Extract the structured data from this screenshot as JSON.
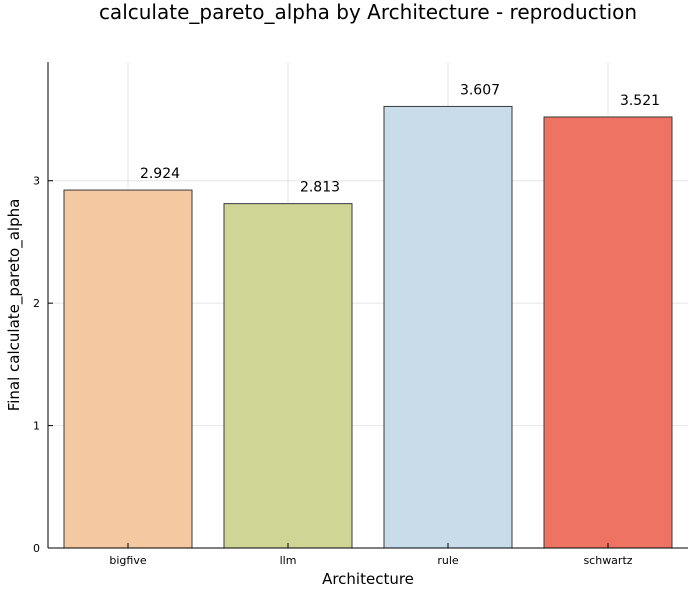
{
  "chart_data": {
    "type": "bar",
    "title": "calculate_pareto_alpha by Architecture - reproduction",
    "xlabel": "Architecture",
    "ylabel": "Final calculate_pareto_alpha",
    "categories": [
      "bigfive",
      "llm",
      "rule",
      "schwartz"
    ],
    "values": [
      2.924,
      2.813,
      3.607,
      3.521
    ],
    "value_labels": [
      "2.924",
      "2.813",
      "3.607",
      "3.521"
    ],
    "bar_colors": [
      "#f4c9a1",
      "#cfd595",
      "#c9dcea",
      "#ee7362"
    ],
    "yticks": [
      0,
      1,
      2,
      3
    ],
    "ylim": [
      0,
      3.97
    ],
    "grid": true,
    "legend": "none"
  }
}
